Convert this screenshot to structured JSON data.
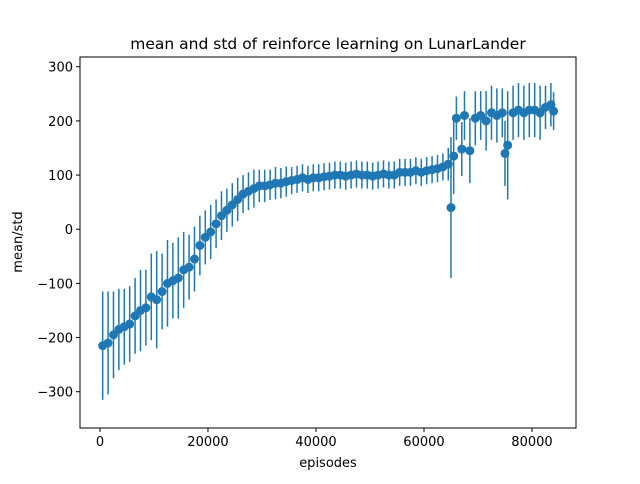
{
  "chart_data": {
    "type": "errorbar",
    "title": "mean and std of reinforce learning on LunarLander",
    "x_label": "episodes",
    "y_label": "mean/std",
    "color": "#1f77b4",
    "x": [
      500,
      1500,
      2500,
      3500,
      4500,
      5500,
      6500,
      7500,
      8500,
      9500,
      10500,
      11500,
      12500,
      13500,
      14500,
      15500,
      16500,
      17500,
      18500,
      19500,
      20500,
      21500,
      22500,
      23500,
      24500,
      25500,
      26500,
      27500,
      28500,
      29500,
      30500,
      31500,
      32500,
      33500,
      34500,
      35500,
      36500,
      37500,
      38500,
      39500,
      40500,
      41500,
      42500,
      43500,
      44500,
      45500,
      46500,
      47500,
      48500,
      49500,
      50500,
      51500,
      52500,
      53500,
      54500,
      55500,
      56500,
      57500,
      58500,
      59500,
      60500,
      61500,
      62500,
      63500,
      64500,
      65000,
      65500,
      66000,
      67000,
      67500,
      68500,
      69500,
      70500,
      71500,
      72500,
      73500,
      74500,
      75000,
      75500,
      76500,
      77500,
      78500,
      79500,
      80500,
      81500,
      82500,
      83500,
      84000
    ],
    "values": [
      -215,
      -210,
      -195,
      -185,
      -180,
      -175,
      -160,
      -150,
      -145,
      -125,
      -130,
      -115,
      -100,
      -95,
      -90,
      -75,
      -70,
      -55,
      -30,
      -15,
      -5,
      10,
      25,
      35,
      45,
      55,
      65,
      70,
      75,
      80,
      80,
      82,
      85,
      85,
      88,
      90,
      92,
      95,
      92,
      95,
      95,
      97,
      98,
      100,
      100,
      98,
      100,
      102,
      100,
      100,
      98,
      100,
      102,
      100,
      100,
      105,
      105,
      105,
      108,
      105,
      108,
      110,
      112,
      115,
      120,
      40,
      135,
      205,
      148,
      210,
      145,
      205,
      210,
      200,
      215,
      210,
      215,
      140,
      155,
      215,
      220,
      215,
      220,
      220,
      215,
      225,
      230,
      218
    ],
    "errors": [
      100,
      95,
      80,
      75,
      70,
      70,
      70,
      75,
      70,
      80,
      90,
      70,
      80,
      70,
      75,
      70,
      60,
      60,
      55,
      50,
      50,
      45,
      45,
      40,
      40,
      40,
      35,
      35,
      35,
      30,
      30,
      28,
      30,
      28,
      28,
      25,
      25,
      25,
      25,
      25,
      25,
      25,
      25,
      25,
      25,
      25,
      25,
      25,
      25,
      25,
      25,
      25,
      25,
      25,
      25,
      25,
      25,
      25,
      25,
      25,
      25,
      25,
      25,
      25,
      30,
      130,
      70,
      40,
      50,
      45,
      60,
      50,
      45,
      55,
      50,
      50,
      45,
      60,
      100,
      50,
      50,
      50,
      50,
      50,
      50,
      40,
      40,
      35
    ],
    "xlim": [
      -3700,
      88150
    ],
    "ylim": [
      -367,
      318
    ],
    "xticks": [
      0,
      20000,
      40000,
      60000,
      80000
    ],
    "yticks": [
      {
        "value": -300,
        "label": "−300"
      },
      {
        "value": -200,
        "label": "−200"
      },
      {
        "value": -100,
        "label": "−100"
      },
      0,
      100,
      200,
      300
    ]
  }
}
